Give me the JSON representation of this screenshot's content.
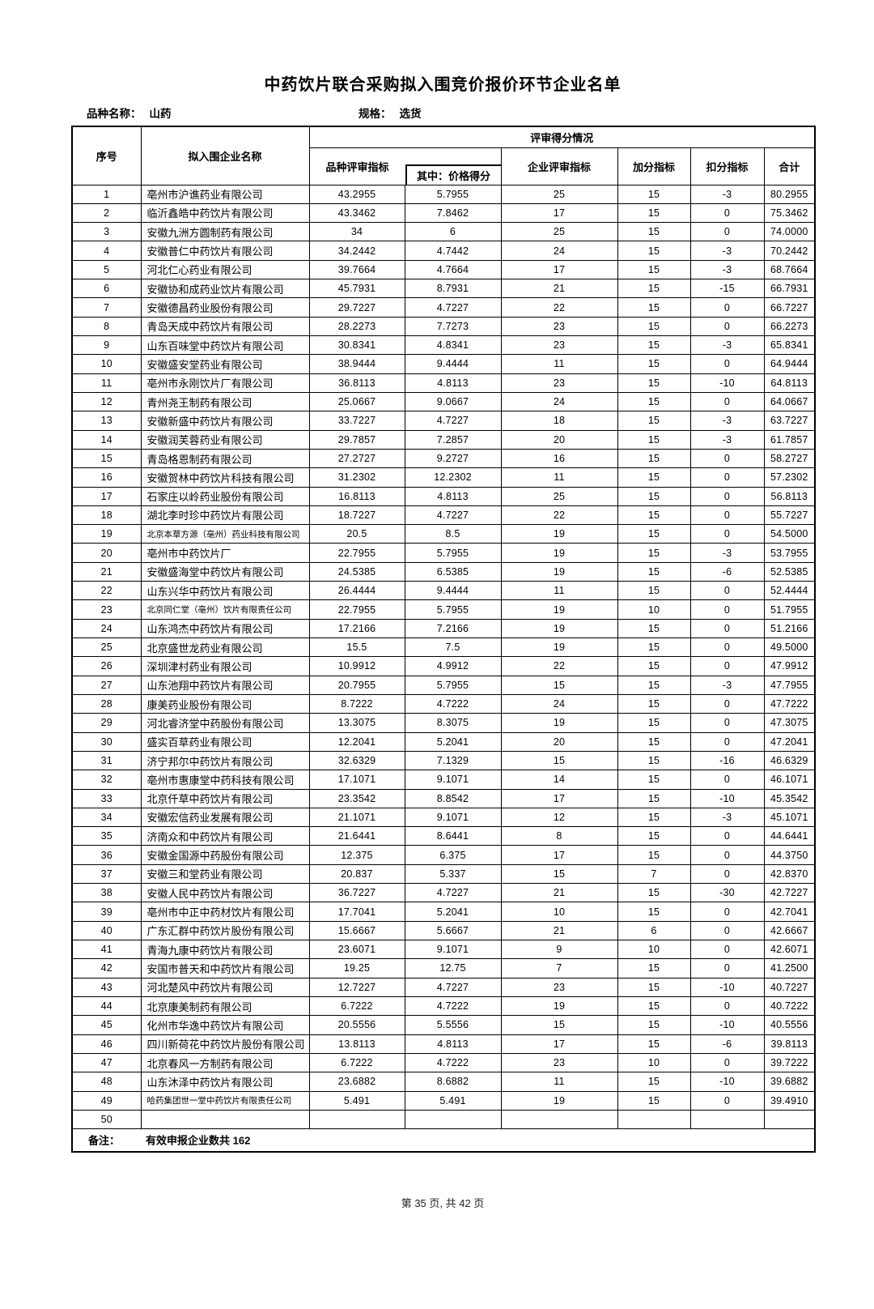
{
  "title": "中药饮片联合采购拟入围竞价报价环节企业名单",
  "meta": {
    "variety_label": "品种名称：",
    "variety_value": "山药",
    "spec_label": "规格：",
    "spec_value": "选货"
  },
  "table": {
    "headers": {
      "index": "序号",
      "company": "拟入围企业名称",
      "score_group": "评审得分情况",
      "variety_score": "品种评审指标",
      "price_score": "其中：价格得分",
      "enterprise_score": "企业评审指标",
      "bonus": "加分指标",
      "deduction": "扣分指标",
      "total": "合计"
    },
    "rows": [
      [
        "1",
        "亳州市沪谯药业有限公司",
        "43.2955",
        "5.7955",
        "25",
        "15",
        "-3",
        "80.2955"
      ],
      [
        "2",
        "临沂鑫皓中药饮片有限公司",
        "43.3462",
        "7.8462",
        "17",
        "15",
        "0",
        "75.3462"
      ],
      [
        "3",
        "安徽九洲方圆制药有限公司",
        "34",
        "6",
        "25",
        "15",
        "0",
        "74.0000"
      ],
      [
        "4",
        "安徽普仁中药饮片有限公司",
        "34.2442",
        "4.7442",
        "24",
        "15",
        "-3",
        "70.2442"
      ],
      [
        "5",
        "河北仁心药业有限公司",
        "39.7664",
        "4.7664",
        "17",
        "15",
        "-3",
        "68.7664"
      ],
      [
        "6",
        "安徽协和成药业饮片有限公司",
        "45.7931",
        "8.7931",
        "21",
        "15",
        "-15",
        "66.7931"
      ],
      [
        "7",
        "安徽德昌药业股份有限公司",
        "29.7227",
        "4.7227",
        "22",
        "15",
        "0",
        "66.7227"
      ],
      [
        "8",
        "青岛天成中药饮片有限公司",
        "28.2273",
        "7.7273",
        "23",
        "15",
        "0",
        "66.2273"
      ],
      [
        "9",
        "山东百味堂中药饮片有限公司",
        "30.8341",
        "4.8341",
        "23",
        "15",
        "-3",
        "65.8341"
      ],
      [
        "10",
        "安徽盛安堂药业有限公司",
        "38.9444",
        "9.4444",
        "11",
        "15",
        "0",
        "64.9444"
      ],
      [
        "11",
        "亳州市永刚饮片厂有限公司",
        "36.8113",
        "4.8113",
        "23",
        "15",
        "-10",
        "64.8113"
      ],
      [
        "12",
        "青州尧王制药有限公司",
        "25.0667",
        "9.0667",
        "24",
        "15",
        "0",
        "64.0667"
      ],
      [
        "13",
        "安徽新盛中药饮片有限公司",
        "33.7227",
        "4.7227",
        "18",
        "15",
        "-3",
        "63.7227"
      ],
      [
        "14",
        "安徽润芙蓉药业有限公司",
        "29.7857",
        "7.2857",
        "20",
        "15",
        "-3",
        "61.7857"
      ],
      [
        "15",
        "青岛格恩制药有限公司",
        "27.2727",
        "9.2727",
        "16",
        "15",
        "0",
        "58.2727"
      ],
      [
        "16",
        "安徽贺林中药饮片科技有限公司",
        "31.2302",
        "12.2302",
        "11",
        "15",
        "0",
        "57.2302"
      ],
      [
        "17",
        "石家庄以岭药业股份有限公司",
        "16.8113",
        "4.8113",
        "25",
        "15",
        "0",
        "56.8113"
      ],
      [
        "18",
        "湖北李时珍中药饮片有限公司",
        "18.7227",
        "4.7227",
        "22",
        "15",
        "0",
        "55.7227"
      ],
      [
        "19",
        "北京本草方源（亳州）药业科技有限公司",
        "20.5",
        "8.5",
        "19",
        "15",
        "0",
        "54.5000"
      ],
      [
        "20",
        "亳州市中药饮片厂",
        "22.7955",
        "5.7955",
        "19",
        "15",
        "-3",
        "53.7955"
      ],
      [
        "21",
        "安徽盛海堂中药饮片有限公司",
        "24.5385",
        "6.5385",
        "19",
        "15",
        "-6",
        "52.5385"
      ],
      [
        "22",
        "山东兴华中药饮片有限公司",
        "26.4444",
        "9.4444",
        "11",
        "15",
        "0",
        "52.4444"
      ],
      [
        "23",
        "北京同仁堂（亳州）饮片有限责任公司",
        "22.7955",
        "5.7955",
        "19",
        "10",
        "0",
        "51.7955"
      ],
      [
        "24",
        "山东鸿杰中药饮片有限公司",
        "17.2166",
        "7.2166",
        "19",
        "15",
        "0",
        "51.2166"
      ],
      [
        "25",
        "北京盛世龙药业有限公司",
        "15.5",
        "7.5",
        "19",
        "15",
        "0",
        "49.5000"
      ],
      [
        "26",
        "深圳津村药业有限公司",
        "10.9912",
        "4.9912",
        "22",
        "15",
        "0",
        "47.9912"
      ],
      [
        "27",
        "山东池翔中药饮片有限公司",
        "20.7955",
        "5.7955",
        "15",
        "15",
        "-3",
        "47.7955"
      ],
      [
        "28",
        "康美药业股份有限公司",
        "8.7222",
        "4.7222",
        "24",
        "15",
        "0",
        "47.7222"
      ],
      [
        "29",
        "河北睿济堂中药股份有限公司",
        "13.3075",
        "8.3075",
        "19",
        "15",
        "0",
        "47.3075"
      ],
      [
        "30",
        "盛实百草药业有限公司",
        "12.2041",
        "5.2041",
        "20",
        "15",
        "0",
        "47.2041"
      ],
      [
        "31",
        "济宁邦尔中药饮片有限公司",
        "32.6329",
        "7.1329",
        "15",
        "15",
        "-16",
        "46.6329"
      ],
      [
        "32",
        "亳州市惠康堂中药科技有限公司",
        "17.1071",
        "9.1071",
        "14",
        "15",
        "0",
        "46.1071"
      ],
      [
        "33",
        "北京仟草中药饮片有限公司",
        "23.3542",
        "8.8542",
        "17",
        "15",
        "-10",
        "45.3542"
      ],
      [
        "34",
        "安徽宏信药业发展有限公司",
        "21.1071",
        "9.1071",
        "12",
        "15",
        "-3",
        "45.1071"
      ],
      [
        "35",
        "济南众和中药饮片有限公司",
        "21.6441",
        "8.6441",
        "8",
        "15",
        "0",
        "44.6441"
      ],
      [
        "36",
        "安徽金国源中药股份有限公司",
        "12.375",
        "6.375",
        "17",
        "15",
        "0",
        "44.3750"
      ],
      [
        "37",
        "安徽三和堂药业有限公司",
        "20.837",
        "5.337",
        "15",
        "7",
        "0",
        "42.8370"
      ],
      [
        "38",
        "安徽人民中药饮片有限公司",
        "36.7227",
        "4.7227",
        "21",
        "15",
        "-30",
        "42.7227"
      ],
      [
        "39",
        "亳州市中正中药材饮片有限公司",
        "17.7041",
        "5.2041",
        "10",
        "15",
        "0",
        "42.7041"
      ],
      [
        "40",
        "广东汇群中药饮片股份有限公司",
        "15.6667",
        "5.6667",
        "21",
        "6",
        "0",
        "42.6667"
      ],
      [
        "41",
        "青海九康中药饮片有限公司",
        "23.6071",
        "9.1071",
        "9",
        "10",
        "0",
        "42.6071"
      ],
      [
        "42",
        "安国市普天和中药饮片有限公司",
        "19.25",
        "12.75",
        "7",
        "15",
        "0",
        "41.2500"
      ],
      [
        "43",
        "河北楚风中药饮片有限公司",
        "12.7227",
        "4.7227",
        "23",
        "15",
        "-10",
        "40.7227"
      ],
      [
        "44",
        "北京康美制药有限公司",
        "6.7222",
        "4.7222",
        "19",
        "15",
        "0",
        "40.7222"
      ],
      [
        "45",
        "化州市华逸中药饮片有限公司",
        "20.5556",
        "5.5556",
        "15",
        "15",
        "-10",
        "40.5556"
      ],
      [
        "46",
        "四川新荷花中药饮片股份有限公司",
        "13.8113",
        "4.8113",
        "17",
        "15",
        "-6",
        "39.8113"
      ],
      [
        "47",
        "北京春风一方制药有限公司",
        "6.7222",
        "4.7222",
        "23",
        "10",
        "0",
        "39.7222"
      ],
      [
        "48",
        "山东沐泽中药饮片有限公司",
        "23.6882",
        "8.6882",
        "11",
        "15",
        "-10",
        "39.6882"
      ],
      [
        "49",
        "哈药集团世一堂中药饮片有限责任公司",
        "5.491",
        "5.491",
        "19",
        "15",
        "0",
        "39.4910"
      ],
      [
        "50",
        "",
        "",
        "",
        "",
        "",
        "",
        ""
      ]
    ],
    "remark_label": "备注：",
    "remark_value": "有效申报企业数共 162"
  },
  "footer": {
    "page_info": "第 35 页, 共 42 页"
  }
}
